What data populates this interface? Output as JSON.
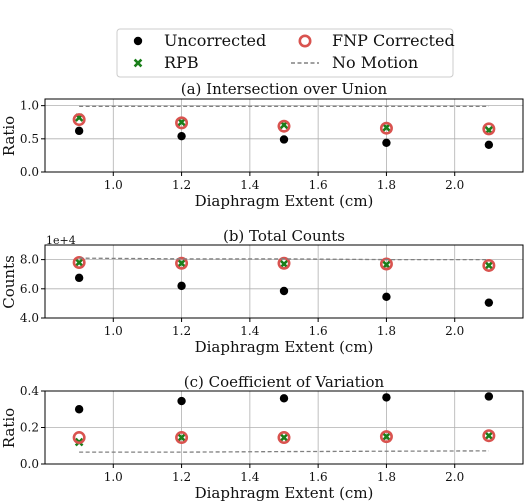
{
  "colors": {
    "uncorrected": "#000000",
    "rpb": "#1a7f1a",
    "fnp": "#d9534f",
    "no_motion": "#808080"
  },
  "legend": {
    "placement": "top-center",
    "entries": [
      {
        "label": "Uncorrected",
        "marker": "dot"
      },
      {
        "label": "RPB",
        "marker": "x"
      },
      {
        "label": "FNP Corrected",
        "marker": "ring"
      },
      {
        "label": "No Motion",
        "marker": "dashed-line"
      }
    ]
  },
  "chart_data": [
    {
      "type": "scatter",
      "title": "(a) Intersection over Union",
      "xlabel": "Diaphragm Extent (cm)",
      "ylabel": "Ratio",
      "x": [
        0.9,
        1.2,
        1.5,
        1.8,
        2.1
      ],
      "xlim": [
        0.8,
        2.2
      ],
      "ylim": [
        0.0,
        1.1
      ],
      "xticks": [
        "1.0",
        "1.2",
        "1.4",
        "1.6",
        "1.8",
        "2.0"
      ],
      "yticks": [
        "0.0",
        "0.5",
        "1.0"
      ],
      "grid": true,
      "series": [
        {
          "name": "Uncorrected",
          "marker": "dot",
          "values": [
            0.62,
            0.54,
            0.49,
            0.44,
            0.41
          ]
        },
        {
          "name": "RPB",
          "marker": "x",
          "values": [
            0.82,
            0.75,
            0.71,
            0.67,
            0.63
          ]
        },
        {
          "name": "FNP Corrected",
          "marker": "ring",
          "values": [
            0.79,
            0.74,
            0.69,
            0.66,
            0.65
          ]
        },
        {
          "name": "No Motion",
          "marker": "dashed-line",
          "values": [
            0.99,
            0.99,
            0.99,
            0.99,
            0.99
          ]
        }
      ]
    },
    {
      "type": "scatter",
      "title": "(b) Total Counts",
      "xlabel": "Diaphragm Extent (cm)",
      "ylabel": "Counts",
      "offset_text": "1e+4",
      "x": [
        0.9,
        1.2,
        1.5,
        1.8,
        2.1
      ],
      "xlim": [
        0.8,
        2.2
      ],
      "ylim": [
        40000,
        90000
      ],
      "xticks": [
        "1.0",
        "1.2",
        "1.4",
        "1.6",
        "1.8",
        "2.0"
      ],
      "yticks": [
        "4.0",
        "6.0",
        "8.0"
      ],
      "grid": true,
      "series": [
        {
          "name": "Uncorrected",
          "marker": "dot",
          "values": [
            67500,
            62000,
            58500,
            54500,
            50500
          ]
        },
        {
          "name": "RPB",
          "marker": "x",
          "values": [
            78000,
            77500,
            77000,
            76500,
            76000
          ]
        },
        {
          "name": "FNP Corrected",
          "marker": "ring",
          "values": [
            78000,
            77500,
            77500,
            77000,
            76000
          ]
        },
        {
          "name": "No Motion",
          "marker": "dashed-line",
          "values": [
            81000,
            80500,
            80500,
            80000,
            80000
          ]
        }
      ]
    },
    {
      "type": "scatter",
      "title": "(c) Coefficient of Variation",
      "xlabel": "Diaphragm Extent (cm)",
      "ylabel": "Ratio",
      "x": [
        0.9,
        1.2,
        1.5,
        1.8,
        2.1
      ],
      "xlim": [
        0.8,
        2.2
      ],
      "ylim": [
        0.0,
        0.4
      ],
      "xticks": [
        "1.0",
        "1.2",
        "1.4",
        "1.6",
        "1.8",
        "2.0"
      ],
      "yticks": [
        "0.0",
        "0.2",
        "0.4"
      ],
      "grid": true,
      "series": [
        {
          "name": "Uncorrected",
          "marker": "dot",
          "values": [
            0.3,
            0.345,
            0.36,
            0.365,
            0.37
          ]
        },
        {
          "name": "RPB",
          "marker": "x",
          "values": [
            0.12,
            0.145,
            0.145,
            0.15,
            0.155
          ]
        },
        {
          "name": "FNP Corrected",
          "marker": "ring",
          "values": [
            0.145,
            0.145,
            0.145,
            0.15,
            0.155
          ]
        },
        {
          "name": "No Motion",
          "marker": "dashed-line",
          "values": [
            0.065,
            0.065,
            0.068,
            0.07,
            0.072
          ]
        }
      ]
    }
  ]
}
